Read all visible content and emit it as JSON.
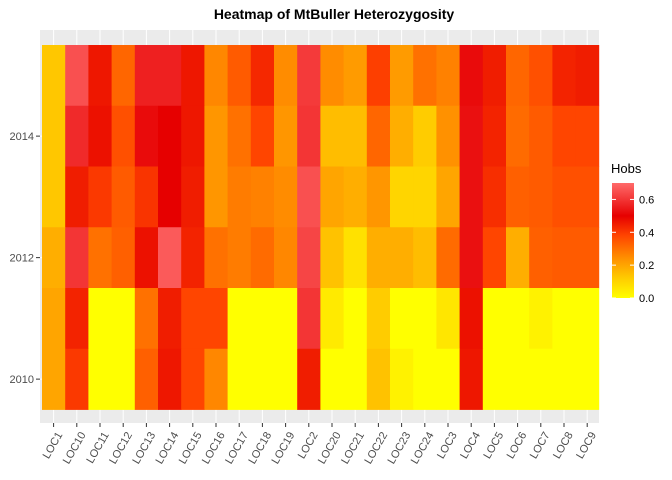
{
  "chart_data": {
    "type": "heatmap",
    "title": "Heatmap of MtBuller Heterozygosity",
    "xlabel": "",
    "ylabel": "",
    "x_categories": [
      "LOC1",
      "LOC10",
      "LOC11",
      "LOC12",
      "LOC13",
      "LOC14",
      "LOC15",
      "LOC16",
      "LOC17",
      "LOC18",
      "LOC19",
      "LOC2",
      "LOC20",
      "LOC21",
      "LOC22",
      "LOC23",
      "LOC24",
      "LOC3",
      "LOC4",
      "LOC5",
      "LOC6",
      "LOC7",
      "LOC8",
      "LOC9"
    ],
    "y_values": [
      2015,
      2014,
      2013,
      2012,
      2011,
      2010
    ],
    "y_ticks": [
      2010,
      2012,
      2014
    ],
    "ylim": [
      2009.5,
      2015.5
    ],
    "values": [
      [
        0.13,
        0.65,
        0.46,
        0.32,
        0.56,
        0.56,
        0.46,
        0.26,
        0.34,
        0.43,
        0.25,
        0.61,
        0.25,
        0.22,
        0.39,
        0.22,
        0.3,
        0.27,
        0.52,
        0.45,
        0.32,
        0.36,
        0.44,
        0.45
      ],
      [
        0.13,
        0.58,
        0.47,
        0.36,
        0.52,
        0.5,
        0.46,
        0.23,
        0.3,
        0.38,
        0.23,
        0.6,
        0.15,
        0.15,
        0.32,
        0.18,
        0.12,
        0.24,
        0.53,
        0.44,
        0.31,
        0.34,
        0.38,
        0.38
      ],
      [
        0.13,
        0.45,
        0.4,
        0.34,
        0.41,
        0.5,
        0.45,
        0.23,
        0.28,
        0.27,
        0.25,
        0.65,
        0.2,
        0.18,
        0.23,
        0.1,
        0.1,
        0.2,
        0.53,
        0.42,
        0.33,
        0.34,
        0.36,
        0.36
      ],
      [
        0.18,
        0.6,
        0.3,
        0.33,
        0.47,
        0.67,
        0.44,
        0.3,
        0.28,
        0.31,
        0.26,
        0.63,
        0.14,
        0.07,
        0.18,
        0.18,
        0.15,
        0.31,
        0.53,
        0.38,
        0.18,
        0.33,
        0.34,
        0.34
      ],
      [
        0.2,
        0.44,
        0.0,
        0.0,
        0.3,
        0.45,
        0.38,
        0.38,
        0.0,
        0.0,
        0.0,
        0.6,
        0.05,
        0.0,
        0.12,
        0.0,
        0.0,
        0.06,
        0.47,
        0.0,
        0.0,
        0.03,
        0.0,
        0.0
      ],
      [
        0.2,
        0.4,
        0.0,
        0.0,
        0.33,
        0.46,
        0.38,
        0.26,
        0.0,
        0.0,
        0.0,
        0.45,
        0.0,
        0.0,
        0.14,
        0.03,
        0.0,
        0.0,
        0.46,
        0.0,
        0.0,
        0.0,
        0.0,
        0.0
      ]
    ],
    "legend": {
      "title": "Hobs",
      "ticks": [
        "0.0",
        "0.2",
        "0.4",
        "0.6"
      ],
      "range": [
        0,
        0.7
      ],
      "placement": "right"
    },
    "color_scale": {
      "low": "#ffff00",
      "stops": [
        "#ffff00",
        "#ffcc00",
        "#ff8c00",
        "#ff4500",
        "#e60000",
        "#ff6a6a"
      ]
    },
    "panel_background": "#ebebeb",
    "grid": true
  }
}
